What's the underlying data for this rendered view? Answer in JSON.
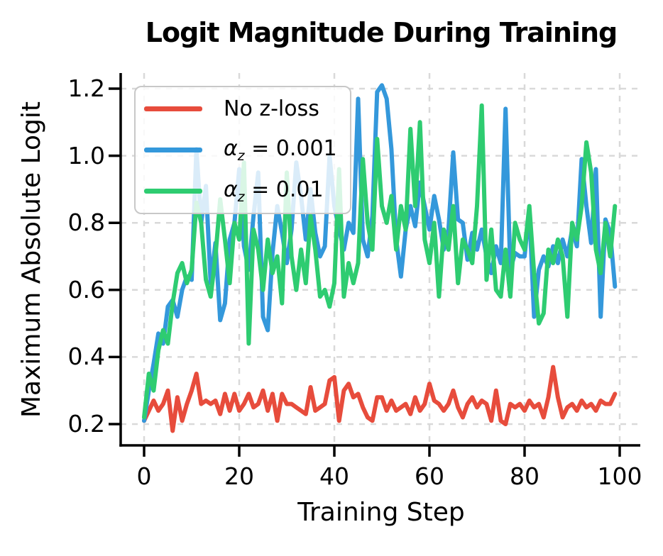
{
  "figure": {
    "title": "Logit Magnitude During Training",
    "x_axis": {
      "label": "Training Step",
      "tick_values": [
        0,
        20,
        40,
        60,
        80,
        100
      ],
      "tick_labels": [
        "0",
        "20",
        "40",
        "60",
        "80",
        "100"
      ]
    },
    "y_axis": {
      "label": "Maximum Absolute Logit",
      "tick_values": [
        0.2,
        0.4,
        0.6,
        0.8,
        1.0,
        1.2
      ],
      "tick_labels": [
        "0.2",
        "0.4",
        "0.6",
        "0.8",
        "1.0",
        "1.2"
      ]
    },
    "legend": {
      "entries": [
        {
          "label": "No z-loss",
          "color": "#e74c3c"
        },
        {
          "symbol": "α",
          "subscript": "z",
          "rest": " = 0.001",
          "color": "#3498db"
        },
        {
          "symbol": "α",
          "subscript": "z",
          "rest": " = 0.01",
          "color": "#2ecc71"
        }
      ],
      "position": "upper left"
    },
    "colors": {
      "grid": "#d9d9d9",
      "spine": "#000000",
      "background": "#ffffff"
    }
  },
  "chart_data": {
    "type": "line",
    "title": "Logit Magnitude During Training",
    "xlabel": "Training Step",
    "ylabel": "Maximum Absolute Logit",
    "x": {
      "start": 0,
      "end": 99,
      "step": 1
    },
    "xlim": [
      -4.9,
      104.3
    ],
    "ylim": [
      0.135,
      1.245
    ],
    "grid": "dashed",
    "legend_position": "upper left",
    "values_note": "values estimated from pixels, ±0.03",
    "series": [
      {
        "name": "No z-loss",
        "color": "#e74c3c",
        "values": [
          0.21,
          0.24,
          0.27,
          0.24,
          0.26,
          0.3,
          0.18,
          0.28,
          0.21,
          0.26,
          0.3,
          0.35,
          0.26,
          0.27,
          0.26,
          0.27,
          0.23,
          0.29,
          0.24,
          0.29,
          0.24,
          0.26,
          0.29,
          0.25,
          0.26,
          0.3,
          0.24,
          0.29,
          0.21,
          0.29,
          0.26,
          0.26,
          0.25,
          0.24,
          0.23,
          0.31,
          0.24,
          0.25,
          0.26,
          0.33,
          0.34,
          0.21,
          0.3,
          0.32,
          0.28,
          0.29,
          0.25,
          0.22,
          0.21,
          0.28,
          0.28,
          0.24,
          0.27,
          0.24,
          0.25,
          0.26,
          0.23,
          0.28,
          0.24,
          0.26,
          0.32,
          0.27,
          0.26,
          0.24,
          0.26,
          0.3,
          0.25,
          0.22,
          0.26,
          0.28,
          0.25,
          0.27,
          0.26,
          0.21,
          0.3,
          0.21,
          0.2,
          0.26,
          0.25,
          0.26,
          0.24,
          0.27,
          0.25,
          0.26,
          0.22,
          0.28,
          0.37,
          0.28,
          0.22,
          0.25,
          0.26,
          0.24,
          0.27,
          0.25,
          0.26,
          0.24,
          0.27,
          0.26,
          0.26,
          0.29
        ]
      },
      {
        "name": "αz = 0.001",
        "color": "#3498db",
        "values": [
          0.21,
          0.3,
          0.38,
          0.47,
          0.44,
          0.55,
          0.57,
          0.52,
          0.6,
          0.64,
          0.63,
          1.02,
          0.8,
          0.91,
          0.62,
          0.74,
          0.51,
          0.56,
          0.75,
          0.8,
          0.96,
          0.73,
          0.66,
          0.82,
          0.95,
          0.52,
          0.48,
          0.71,
          0.85,
          0.77,
          0.68,
          0.78,
          0.98,
          0.88,
          0.75,
          0.9,
          0.77,
          0.7,
          0.73,
          1.0,
          0.85,
          0.78,
          0.72,
          0.8,
          0.77,
          1.17,
          0.75,
          0.7,
          0.82,
          1.19,
          1.21,
          1.17,
          1.02,
          0.75,
          0.64,
          0.78,
          0.85,
          0.79,
          0.92,
          0.85,
          0.78,
          0.88,
          0.81,
          0.72,
          0.78,
          1.01,
          0.81,
          0.8,
          0.69,
          0.77,
          0.72,
          0.78,
          0.7,
          0.65,
          0.73,
          0.68,
          1.14,
          0.66,
          0.71,
          0.7,
          0.7,
          0.84,
          0.52,
          0.66,
          0.7,
          0.67,
          0.73,
          0.68,
          0.75,
          0.7,
          0.78,
          0.73,
          0.99,
          0.85,
          0.74,
          0.96,
          0.52,
          0.81,
          0.77,
          0.61
        ]
      },
      {
        "name": "αz = 0.01",
        "color": "#2ecc71",
        "values": [
          0.22,
          0.35,
          0.3,
          0.42,
          0.48,
          0.44,
          0.56,
          0.65,
          0.68,
          0.62,
          0.66,
          0.86,
          0.8,
          0.63,
          0.58,
          0.7,
          0.87,
          0.75,
          0.62,
          0.8,
          0.75,
          0.98,
          0.44,
          0.78,
          0.72,
          0.6,
          0.75,
          0.65,
          0.7,
          0.56,
          0.95,
          0.7,
          0.6,
          0.72,
          0.62,
          0.82,
          0.72,
          0.58,
          0.6,
          0.55,
          0.62,
          0.96,
          0.58,
          0.68,
          0.62,
          0.68,
          0.99,
          0.8,
          0.72,
          1.05,
          0.85,
          0.8,
          0.88,
          0.72,
          0.85,
          0.78,
          1.08,
          0.85,
          1.1,
          0.75,
          0.68,
          0.8,
          0.58,
          0.78,
          0.72,
          0.85,
          0.62,
          0.75,
          0.72,
          0.68,
          0.85,
          1.15,
          0.63,
          0.78,
          0.6,
          0.58,
          0.72,
          0.58,
          0.8,
          0.75,
          0.72,
          0.85,
          0.65,
          0.5,
          0.53,
          0.72,
          0.68,
          0.75,
          0.7,
          0.52,
          0.8,
          0.75,
          0.85,
          1.04,
          0.95,
          0.72,
          0.65,
          0.8,
          0.7,
          0.85
        ]
      }
    ]
  }
}
